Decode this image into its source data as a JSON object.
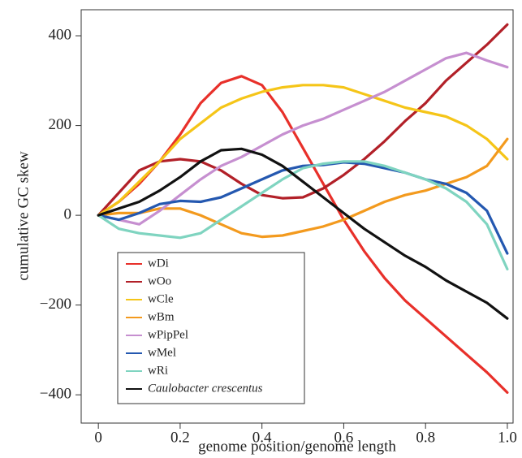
{
  "chart_data": {
    "type": "line",
    "ylabel": "cumulative GC skew",
    "xlabel": "genome position/genome length",
    "x": [
      0,
      0.05,
      0.1,
      0.15,
      0.2,
      0.25,
      0.3,
      0.35,
      0.4,
      0.45,
      0.5,
      0.55,
      0.6,
      0.65,
      0.7,
      0.75,
      0.8,
      0.85,
      0.9,
      0.95,
      1.0
    ],
    "xlim": [
      -0.042,
      1.014
    ],
    "ylim": [
      -463,
      458
    ],
    "xticks": [
      0,
      0.2,
      0.4,
      0.6,
      0.8,
      {
        "value": 1,
        "label": "1.0"
      }
    ],
    "yticks": [
      {
        "value": -400,
        "label": "−400"
      },
      {
        "value": -200,
        "label": "−200"
      },
      0,
      200,
      400
    ],
    "legend": "lower left",
    "series": [
      {
        "name": "wDi",
        "color": "#e8302a",
        "values": [
          0,
          30,
          70,
          120,
          180,
          250,
          295,
          310,
          290,
          230,
          150,
          70,
          -10,
          -80,
          -140,
          -190,
          -230,
          -270,
          -310,
          -350,
          -395
        ]
      },
      {
        "name": "wOo",
        "color": "#b22028",
        "values": [
          0,
          50,
          100,
          120,
          125,
          120,
          100,
          70,
          45,
          38,
          40,
          60,
          90,
          125,
          165,
          210,
          250,
          300,
          340,
          380,
          425
        ]
      },
      {
        "name": "wCle",
        "color": "#f5c518",
        "values": [
          0,
          30,
          75,
          120,
          170,
          205,
          240,
          260,
          275,
          285,
          290,
          290,
          285,
          270,
          255,
          240,
          230,
          220,
          200,
          170,
          125
        ]
      },
      {
        "name": "wBm",
        "color": "#f39a1e",
        "values": [
          0,
          5,
          5,
          15,
          15,
          0,
          -20,
          -40,
          -48,
          -45,
          -35,
          -25,
          -10,
          10,
          30,
          45,
          55,
          70,
          85,
          110,
          170
        ]
      },
      {
        "name": "wPipPel",
        "color": "#c68fd0",
        "values": [
          0,
          -10,
          -20,
          10,
          45,
          80,
          110,
          130,
          155,
          180,
          200,
          215,
          235,
          255,
          275,
          300,
          325,
          350,
          362,
          345,
          330
        ]
      },
      {
        "name": "wMel",
        "color": "#2458b0",
        "values": [
          0,
          -10,
          5,
          25,
          32,
          30,
          40,
          60,
          80,
          100,
          110,
          112,
          118,
          115,
          105,
          95,
          80,
          70,
          50,
          10,
          -85
        ]
      },
      {
        "name": "wRi",
        "color": "#7fd4c0",
        "values": [
          0,
          -30,
          -40,
          -45,
          -50,
          -40,
          -10,
          20,
          50,
          80,
          105,
          115,
          120,
          120,
          110,
          95,
          80,
          60,
          30,
          -20,
          -120
        ]
      },
      {
        "name": "Caulobacter crescentus",
        "color": "#111111",
        "values": [
          0,
          15,
          30,
          55,
          85,
          120,
          145,
          148,
          135,
          110,
          75,
          40,
          5,
          -30,
          -60,
          -90,
          -115,
          -145,
          -170,
          -195,
          -230
        ]
      }
    ]
  }
}
